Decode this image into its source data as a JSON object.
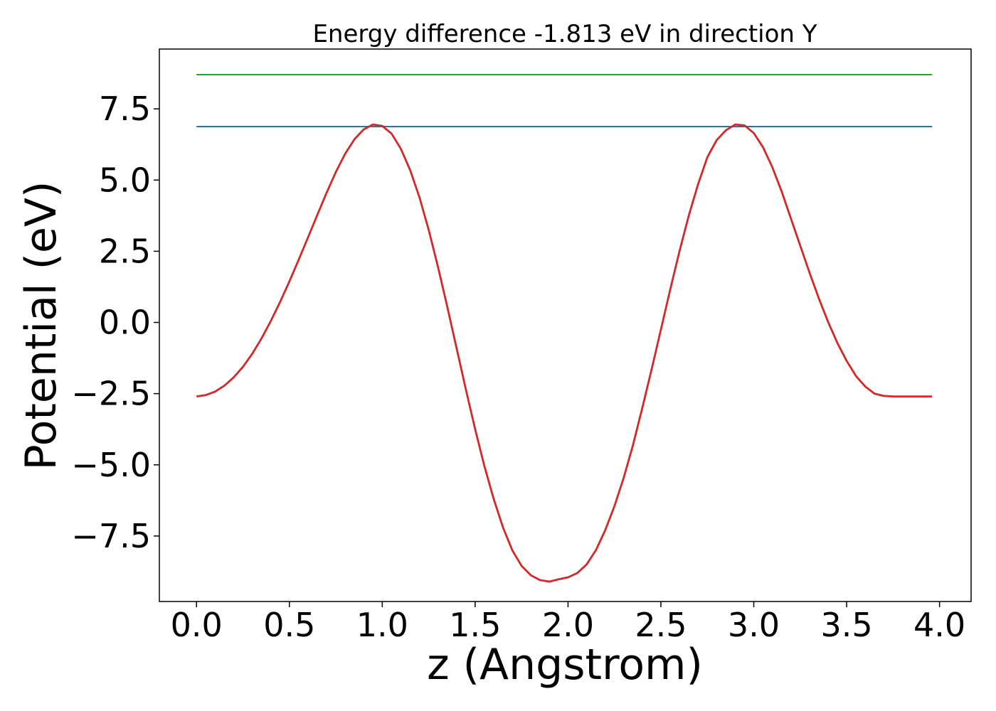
{
  "chart_data": {
    "type": "line",
    "title": "Energy difference -1.813 eV in direction Y",
    "xlabel": "z (Angstrom)",
    "ylabel": "Potential (eV)",
    "xlim": [
      -0.2,
      4.17
    ],
    "ylim": [
      -9.8,
      9.6
    ],
    "x_ticks": [
      0.0,
      0.5,
      1.0,
      1.5,
      2.0,
      2.5,
      3.0,
      3.5,
      4.0
    ],
    "x_tick_labels": [
      "0.0",
      "0.5",
      "1.0",
      "1.5",
      "2.0",
      "2.5",
      "3.0",
      "3.5",
      "4.0"
    ],
    "y_ticks": [
      -7.5,
      -5.0,
      -2.5,
      0.0,
      2.5,
      5.0,
      7.5
    ],
    "y_tick_labels": [
      "−7.5",
      "−5.0",
      "−2.5",
      "0.0",
      "2.5",
      "5.0",
      "7.5"
    ],
    "grid": false,
    "series": [
      {
        "color": "#2ca02c",
        "x": [
          0.0,
          3.96
        ],
        "y": [
          8.7,
          8.7
        ]
      },
      {
        "color": "#1f77b4",
        "x": [
          0.0,
          3.96
        ],
        "y": [
          6.88,
          6.88
        ]
      },
      {
        "color": "#d62728",
        "x": [
          0.0,
          0.05,
          0.1,
          0.15,
          0.2,
          0.25,
          0.3,
          0.35,
          0.4,
          0.45,
          0.5,
          0.55,
          0.6,
          0.65,
          0.7,
          0.75,
          0.8,
          0.85,
          0.9,
          0.95,
          1.0,
          1.05,
          1.1,
          1.15,
          1.2,
          1.25,
          1.3,
          1.35,
          1.4,
          1.45,
          1.5,
          1.55,
          1.6,
          1.65,
          1.7,
          1.75,
          1.8,
          1.85,
          1.9,
          1.95,
          2.0,
          2.05,
          2.1,
          2.15,
          2.2,
          2.25,
          2.3,
          2.35,
          2.4,
          2.45,
          2.5,
          2.55,
          2.6,
          2.65,
          2.7,
          2.75,
          2.8,
          2.85,
          2.9,
          2.95,
          3.0,
          3.05,
          3.1,
          3.15,
          3.2,
          3.25,
          3.3,
          3.35,
          3.4,
          3.45,
          3.5,
          3.55,
          3.6,
          3.65,
          3.7,
          3.75,
          3.8,
          3.85,
          3.9,
          3.96
        ],
        "y": [
          -2.6,
          -2.55,
          -2.43,
          -2.22,
          -1.93,
          -1.56,
          -1.1,
          -0.56,
          0.05,
          0.72,
          1.44,
          2.2,
          2.98,
          3.77,
          4.55,
          5.28,
          5.92,
          6.43,
          6.78,
          6.95,
          6.9,
          6.63,
          6.1,
          5.35,
          4.4,
          3.25,
          1.95,
          0.55,
          -0.9,
          -2.35,
          -3.75,
          -5.05,
          -6.2,
          -7.2,
          -8.0,
          -8.55,
          -8.88,
          -9.05,
          -9.1,
          -9.02,
          -8.95,
          -8.8,
          -8.5,
          -8.0,
          -7.3,
          -6.45,
          -5.45,
          -4.3,
          -3.0,
          -1.65,
          -0.25,
          1.15,
          2.5,
          3.75,
          4.85,
          5.8,
          6.4,
          6.75,
          6.95,
          6.92,
          6.65,
          6.15,
          5.45,
          4.6,
          3.65,
          2.7,
          1.75,
          0.85,
          0.02,
          -0.72,
          -1.35,
          -1.88,
          -2.25,
          -2.5,
          -2.58,
          -2.6,
          -2.6,
          -2.6,
          -2.6,
          -2.6
        ]
      }
    ]
  }
}
